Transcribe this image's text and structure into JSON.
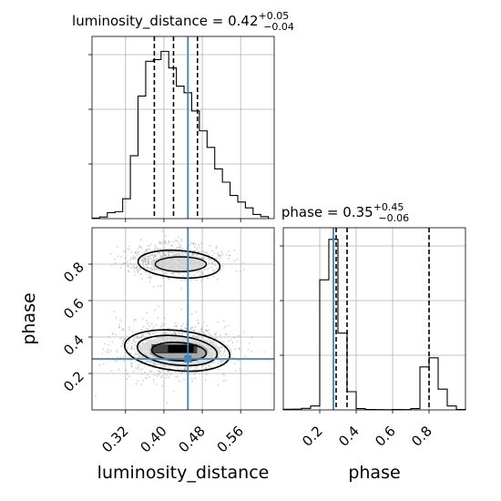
{
  "chart_data": {
    "type": "corner",
    "parameters": [
      "luminosity_distance",
      "phase"
    ],
    "truth": {
      "luminosity_distance": 0.45,
      "phase": 0.28
    },
    "truth_color": "#4682b4",
    "line_color": "#000000",
    "grid": true,
    "panels": {
      "luminosity_distance_hist": {
        "title": {
          "main": "luminosity_distance = 0.42",
          "sup": "+0.05",
          "sub": "−0.04"
        },
        "xlim": [
          0.25,
          0.63
        ],
        "bin_edges": [
          0.25,
          0.266,
          0.282,
          0.298,
          0.314,
          0.33,
          0.346,
          0.362,
          0.378,
          0.394,
          0.41,
          0.426,
          0.442,
          0.458,
          0.474,
          0.49,
          0.506,
          0.522,
          0.538,
          0.554,
          0.57,
          0.586,
          0.602,
          0.618
        ],
        "counts": [
          0.3,
          1.0,
          3.6,
          4.2,
          12.0,
          38.0,
          74.0,
          95.0,
          96.0,
          101.0,
          91.0,
          80.0,
          76.0,
          65.0,
          53.0,
          43.0,
          30.0,
          22.0,
          14.0,
          10.0,
          6.5,
          2.5,
          1.2
        ],
        "ylim": [
          0,
          110
        ],
        "quantiles": [
          0.38,
          0.42,
          0.47
        ]
      },
      "phase_hist": {
        "title": {
          "main": "phase = 0.35",
          "sup": "+0.45",
          "sub": "−0.06"
        },
        "xlim": [
          0.0,
          1.0
        ],
        "bin_edges": [
          0.0,
          0.05,
          0.1,
          0.15,
          0.2,
          0.25,
          0.3,
          0.35,
          0.4,
          0.45,
          0.5,
          0.55,
          0.6,
          0.65,
          0.7,
          0.75,
          0.8,
          0.85,
          0.9,
          0.95,
          1.0
        ],
        "counts": [
          0.5,
          0.6,
          1.2,
          3.0,
          100.0,
          131.0,
          59.0,
          14.0,
          1.0,
          0.3,
          0.2,
          0.1,
          0.3,
          0.2,
          1.0,
          33.0,
          40.0,
          16.0,
          3.0,
          0.3
        ],
        "ylim": [
          0,
          140
        ],
        "xticks": [
          "0.2",
          "0.4",
          "0.6",
          "0.8"
        ],
        "xlabel": "phase",
        "quantiles": [
          0.29,
          0.35,
          0.8
        ]
      },
      "joint": {
        "xlim": [
          0.25,
          0.63
        ],
        "ylim": [
          0.0,
          1.0
        ],
        "xticks": [
          "0.32",
          "0.40",
          "0.48",
          "0.56"
        ],
        "yticks": [
          "0.2",
          "0.4",
          "0.6",
          "0.8"
        ],
        "xlabel": "luminosity_distance",
        "ylabel": "phase",
        "clusters": [
          {
            "center": [
              0.42,
              0.33
            ],
            "spread": [
              0.06,
              0.09
            ]
          },
          {
            "center": [
              0.42,
              0.82
            ],
            "spread": [
              0.05,
              0.06
            ]
          }
        ]
      }
    }
  }
}
